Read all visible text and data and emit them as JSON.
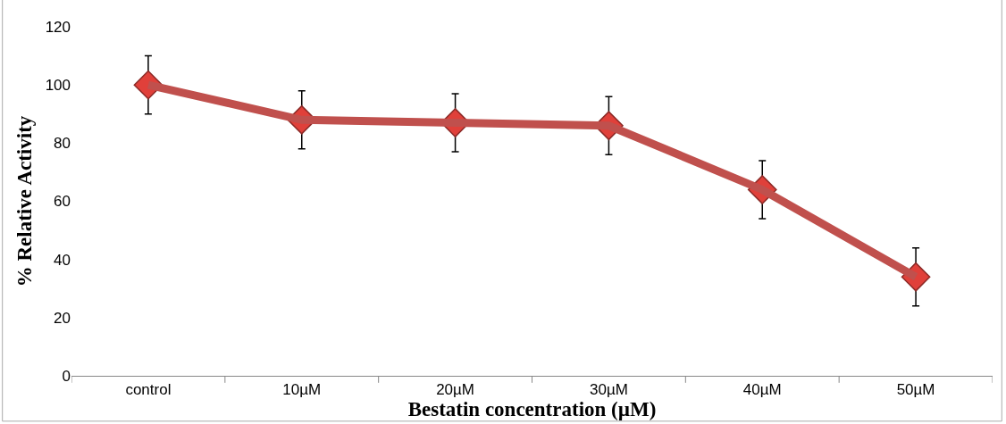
{
  "chart_data": {
    "type": "line",
    "xlabel": "Bestatin concentration (µM)",
    "ylabel": "% Relative Activity",
    "categories": [
      "control",
      "10µM",
      "20µM",
      "30µM",
      "40µM",
      "50µM"
    ],
    "series": [
      {
        "color": "#c0504d",
        "values": [
          100,
          88,
          87,
          86,
          64,
          34
        ],
        "errors": [
          10,
          10,
          10,
          10,
          10,
          10
        ]
      }
    ],
    "ylim": [
      0,
      120
    ],
    "yticks": [
      0,
      20,
      40,
      60,
      80,
      100,
      120
    ],
    "marker": "diamond",
    "line_style": "solid"
  }
}
